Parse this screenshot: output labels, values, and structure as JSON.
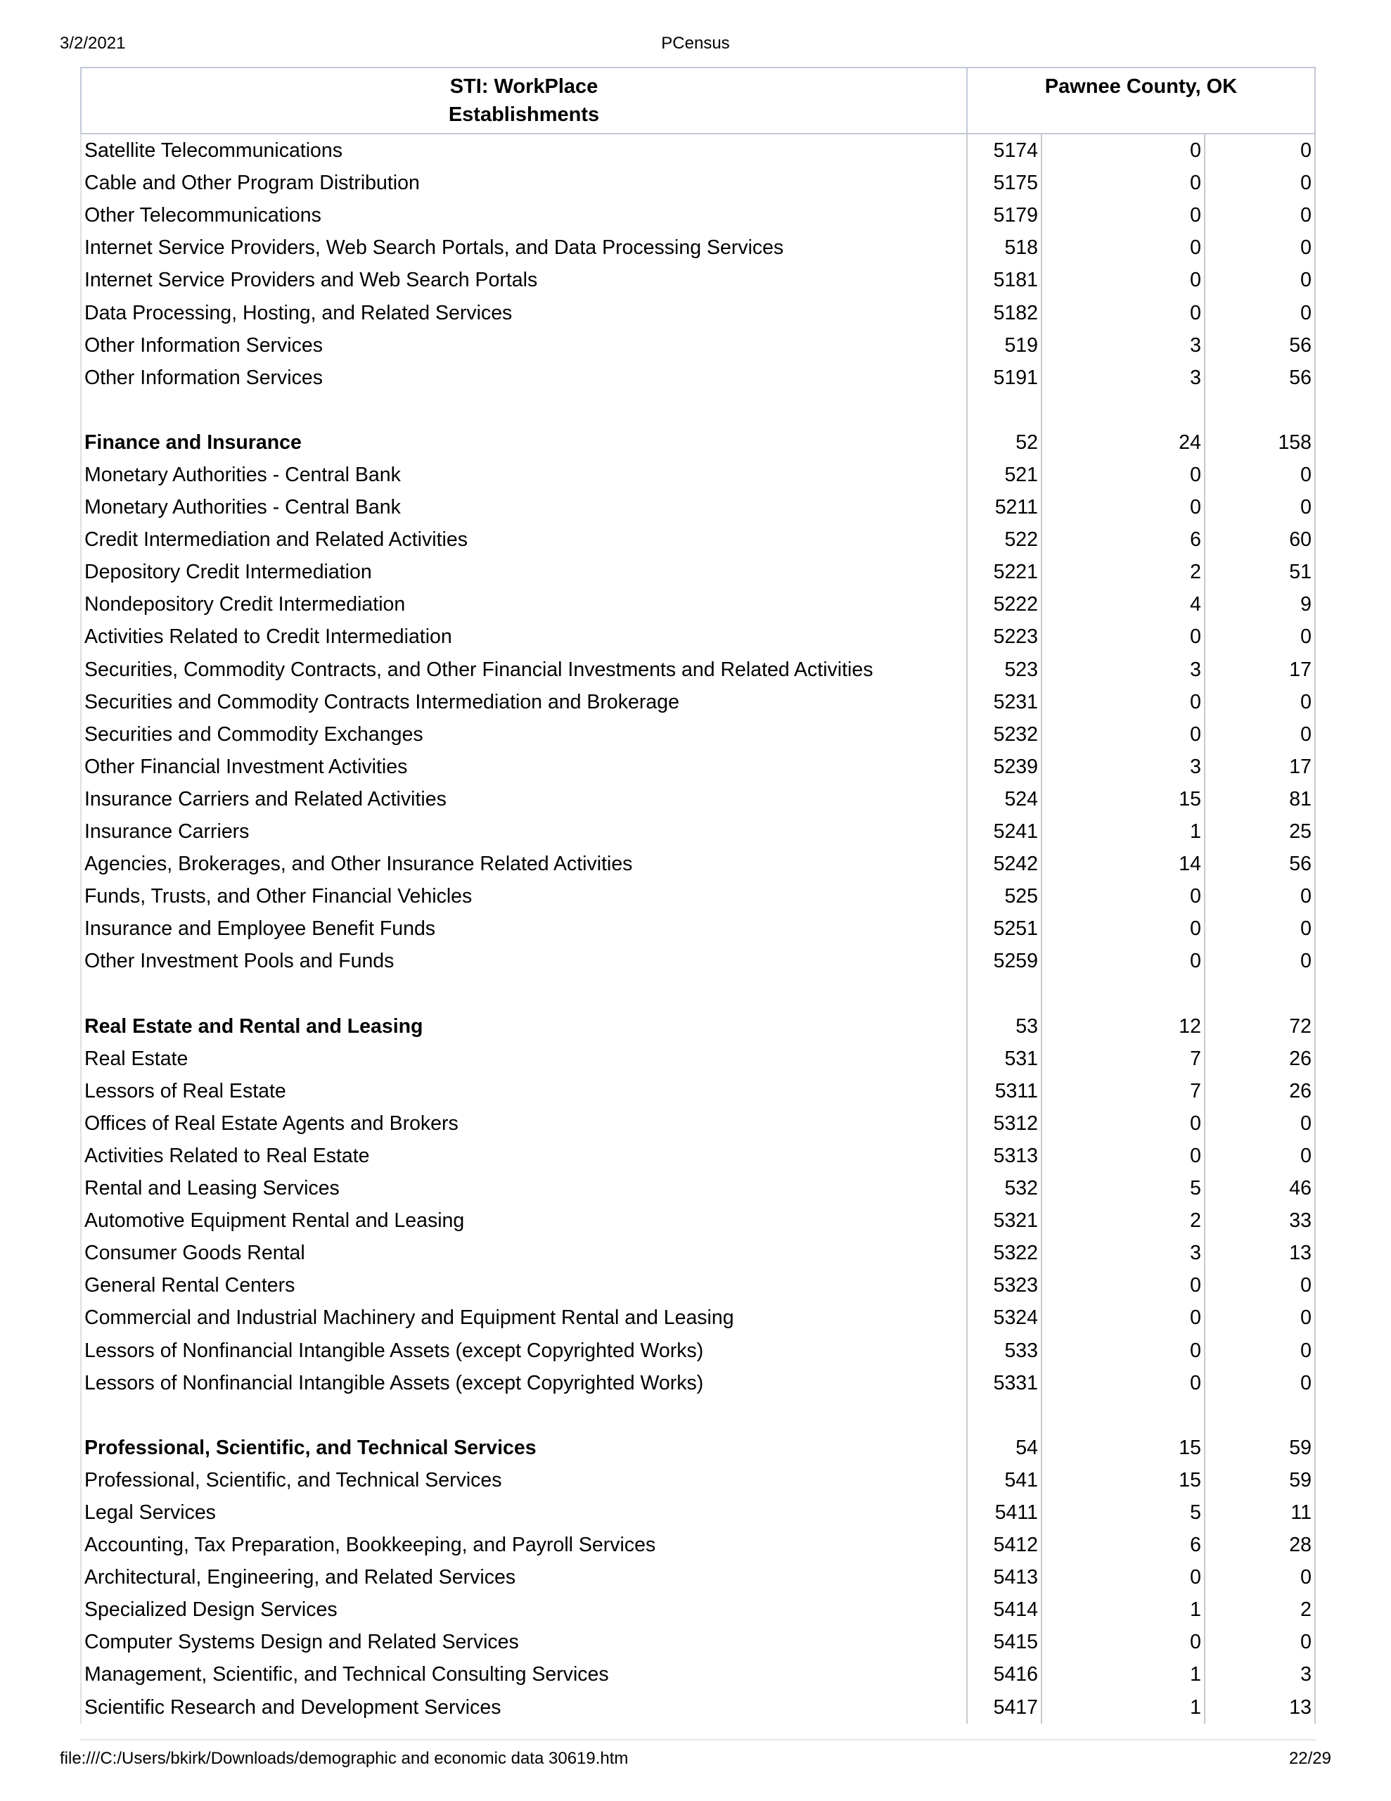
{
  "header": {
    "date": "3/2/2021",
    "title": "PCensus"
  },
  "table": {
    "col1_header_line1": "STI: WorkPlace",
    "col1_header_line2": "Establishments",
    "col2_header": "Pawnee County, OK",
    "rows": [
      {
        "label": "Satellite Telecommunications",
        "code": "5174",
        "v1": "0",
        "v2": "0"
      },
      {
        "label": "Cable and Other Program Distribution",
        "code": "5175",
        "v1": "0",
        "v2": "0"
      },
      {
        "label": "Other Telecommunications",
        "code": "5179",
        "v1": "0",
        "v2": "0"
      },
      {
        "label": "Internet Service Providers, Web Search Portals, and Data Processing Services",
        "code": "518",
        "v1": "0",
        "v2": "0"
      },
      {
        "label": "Internet Service Providers and Web Search Portals",
        "code": "5181",
        "v1": "0",
        "v2": "0"
      },
      {
        "label": "Data Processing, Hosting, and Related Services",
        "code": "5182",
        "v1": "0",
        "v2": "0"
      },
      {
        "label": "Other Information Services",
        "code": "519",
        "v1": "3",
        "v2": "56"
      },
      {
        "label": "Other Information Services",
        "code": "5191",
        "v1": "3",
        "v2": "56"
      },
      {
        "blank": true
      },
      {
        "label": "Finance and Insurance",
        "code": "52",
        "v1": "24",
        "v2": "158",
        "bold": true
      },
      {
        "label": "Monetary Authorities - Central Bank",
        "code": "521",
        "v1": "0",
        "v2": "0"
      },
      {
        "label": "Monetary Authorities - Central Bank",
        "code": "5211",
        "v1": "0",
        "v2": "0"
      },
      {
        "label": "Credit Intermediation and Related Activities",
        "code": "522",
        "v1": "6",
        "v2": "60"
      },
      {
        "label": "Depository Credit Intermediation",
        "code": "5221",
        "v1": "2",
        "v2": "51"
      },
      {
        "label": "Nondepository Credit Intermediation",
        "code": "5222",
        "v1": "4",
        "v2": "9"
      },
      {
        "label": "Activities Related to Credit Intermediation",
        "code": "5223",
        "v1": "0",
        "v2": "0"
      },
      {
        "label": "Securities, Commodity Contracts, and Other Financial Investments and Related Activities",
        "code": "523",
        "v1": "3",
        "v2": "17"
      },
      {
        "label": "Securities and Commodity Contracts Intermediation and Brokerage",
        "code": "5231",
        "v1": "0",
        "v2": "0"
      },
      {
        "label": "Securities and Commodity Exchanges",
        "code": "5232",
        "v1": "0",
        "v2": "0"
      },
      {
        "label": "Other Financial Investment Activities",
        "code": "5239",
        "v1": "3",
        "v2": "17"
      },
      {
        "label": "Insurance Carriers and Related Activities",
        "code": "524",
        "v1": "15",
        "v2": "81"
      },
      {
        "label": "Insurance Carriers",
        "code": "5241",
        "v1": "1",
        "v2": "25"
      },
      {
        "label": "Agencies, Brokerages, and Other Insurance Related Activities",
        "code": "5242",
        "v1": "14",
        "v2": "56"
      },
      {
        "label": "Funds, Trusts, and Other Financial Vehicles",
        "code": "525",
        "v1": "0",
        "v2": "0"
      },
      {
        "label": "Insurance and Employee Benefit Funds",
        "code": "5251",
        "v1": "0",
        "v2": "0"
      },
      {
        "label": "Other Investment Pools and Funds",
        "code": "5259",
        "v1": "0",
        "v2": "0"
      },
      {
        "blank": true
      },
      {
        "label": "Real Estate and Rental and Leasing",
        "code": "53",
        "v1": "12",
        "v2": "72",
        "bold": true
      },
      {
        "label": "Real Estate",
        "code": "531",
        "v1": "7",
        "v2": "26"
      },
      {
        "label": "Lessors of Real Estate",
        "code": "5311",
        "v1": "7",
        "v2": "26"
      },
      {
        "label": "Offices of Real Estate Agents and Brokers",
        "code": "5312",
        "v1": "0",
        "v2": "0"
      },
      {
        "label": "Activities Related to Real Estate",
        "code": "5313",
        "v1": "0",
        "v2": "0"
      },
      {
        "label": "Rental and Leasing Services",
        "code": "532",
        "v1": "5",
        "v2": "46"
      },
      {
        "label": "Automotive Equipment Rental and Leasing",
        "code": "5321",
        "v1": "2",
        "v2": "33"
      },
      {
        "label": "Consumer Goods Rental",
        "code": "5322",
        "v1": "3",
        "v2": "13"
      },
      {
        "label": "General Rental Centers",
        "code": "5323",
        "v1": "0",
        "v2": "0"
      },
      {
        "label": "Commercial and Industrial Machinery and Equipment Rental and Leasing",
        "code": "5324",
        "v1": "0",
        "v2": "0"
      },
      {
        "label": "Lessors of Nonfinancial Intangible Assets (except Copyrighted Works)",
        "code": "533",
        "v1": "0",
        "v2": "0"
      },
      {
        "label": "Lessors of Nonfinancial Intangible Assets (except Copyrighted Works)",
        "code": "5331",
        "v1": "0",
        "v2": "0"
      },
      {
        "blank": true
      },
      {
        "label": "Professional, Scientific, and Technical Services",
        "code": "54",
        "v1": "15",
        "v2": "59",
        "bold": true
      },
      {
        "label": "Professional, Scientific, and Technical Services",
        "code": "541",
        "v1": "15",
        "v2": "59"
      },
      {
        "label": "Legal Services",
        "code": "5411",
        "v1": "5",
        "v2": "11"
      },
      {
        "label": "Accounting, Tax Preparation, Bookkeeping, and Payroll Services",
        "code": "5412",
        "v1": "6",
        "v2": "28"
      },
      {
        "label": "Architectural, Engineering, and Related Services",
        "code": "5413",
        "v1": "0",
        "v2": "0"
      },
      {
        "label": "Specialized Design Services",
        "code": "5414",
        "v1": "1",
        "v2": "2"
      },
      {
        "label": "Computer Systems Design and Related Services",
        "code": "5415",
        "v1": "0",
        "v2": "0"
      },
      {
        "label": "Management, Scientific, and Technical Consulting Services",
        "code": "5416",
        "v1": "1",
        "v2": "3"
      },
      {
        "label": "Scientific Research and Development Services",
        "code": "5417",
        "v1": "1",
        "v2": "13"
      }
    ]
  },
  "footer": {
    "url": "file:///C:/Users/bkirk/Downloads/demographic and economic data 30619.htm",
    "page": "22/29"
  }
}
